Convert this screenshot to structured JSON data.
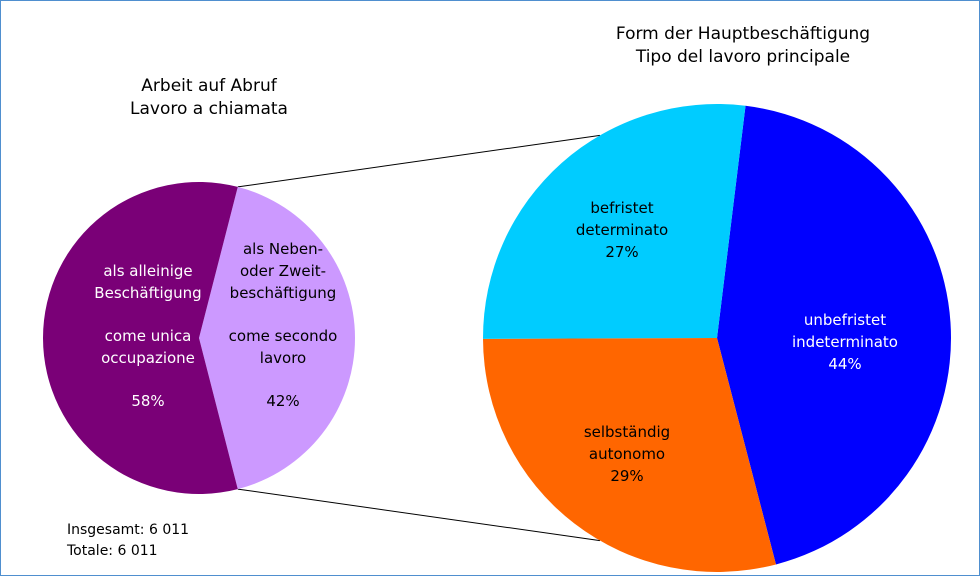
{
  "chart_data": [
    {
      "type": "pie",
      "title": [
        "Arbeit auf Abruf",
        "Lavoro a chiamata"
      ],
      "slices": [
        {
          "label_de": [
            "als alleinige",
            "Beschäftigung"
          ],
          "label_it": [
            "come unica",
            "occupazione"
          ],
          "value": 58,
          "value_label": "58%",
          "color": "#7a0077"
        },
        {
          "label_de": [
            "als Neben-",
            "oder Zweit-",
            "beschäftigung"
          ],
          "label_it": [
            "come secondo",
            "lavoro"
          ],
          "value": 42,
          "value_label": "42%",
          "color": "#cc99ff"
        }
      ],
      "footnote": [
        "Insgesamt: 6 011",
        "Totale: 6 011"
      ]
    },
    {
      "type": "pie",
      "title": [
        "Form der Hauptbeschäftigung",
        "Tipo del lavoro principale"
      ],
      "slices": [
        {
          "label": [
            "unbefristet",
            "indeterminato"
          ],
          "value": 44,
          "value_label": "44%",
          "color": "#0000ff"
        },
        {
          "label": [
            "selbständig",
            "autonomo"
          ],
          "value": 29,
          "value_label": "29%",
          "color": "#ff6600"
        },
        {
          "label": [
            "befristet",
            "determinato"
          ],
          "value": 27,
          "value_label": "27%",
          "color": "#00ccff"
        }
      ]
    }
  ]
}
